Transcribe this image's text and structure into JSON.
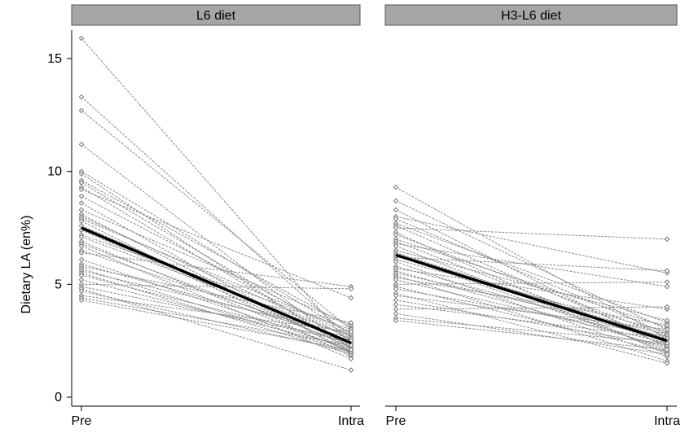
{
  "chart_data": {
    "type": "line",
    "ylabel": "Dietary LA (en%)",
    "ylim": [
      0,
      16
    ],
    "yticks": [
      0,
      5,
      10,
      15
    ],
    "xticks": [
      "Pre",
      "Intra"
    ],
    "grid": false,
    "panels": [
      {
        "title": "L6 diet",
        "mean": [
          7.5,
          2.4
        ],
        "individuals": [
          [
            15.9,
            2.3
          ],
          [
            13.3,
            2.6
          ],
          [
            12.7,
            3.0
          ],
          [
            11.2,
            2.1
          ],
          [
            10.0,
            2.8
          ],
          [
            9.9,
            2.0
          ],
          [
            9.6,
            3.1
          ],
          [
            9.5,
            2.5
          ],
          [
            9.3,
            2.2
          ],
          [
            9.2,
            4.4
          ],
          [
            8.9,
            2.7
          ],
          [
            8.6,
            1.9
          ],
          [
            8.3,
            3.2
          ],
          [
            8.1,
            2.0
          ],
          [
            8.0,
            2.6
          ],
          [
            7.9,
            2.9
          ],
          [
            7.8,
            1.8
          ],
          [
            7.6,
            2.4
          ],
          [
            7.4,
            2.2
          ],
          [
            7.2,
            3.0
          ],
          [
            7.1,
            2.7
          ],
          [
            6.9,
            2.0
          ],
          [
            6.8,
            2.3
          ],
          [
            6.7,
            1.7
          ],
          [
            6.5,
            2.5
          ],
          [
            6.4,
            4.9
          ],
          [
            6.1,
            2.1
          ],
          [
            5.9,
            2.6
          ],
          [
            5.8,
            3.3
          ],
          [
            5.7,
            2.0
          ],
          [
            5.6,
            2.8
          ],
          [
            5.5,
            1.9
          ],
          [
            5.4,
            2.4
          ],
          [
            5.2,
            2.2
          ],
          [
            5.0,
            4.8
          ],
          [
            4.9,
            2.5
          ],
          [
            4.8,
            1.2
          ],
          [
            4.7,
            2.0
          ],
          [
            4.5,
            2.9
          ],
          [
            4.4,
            2.3
          ],
          [
            4.3,
            2.1
          ]
        ]
      },
      {
        "title": "H3-L6 diet",
        "mean": [
          6.3,
          2.5
        ],
        "individuals": [
          [
            9.3,
            2.6
          ],
          [
            8.7,
            3.0
          ],
          [
            8.3,
            2.2
          ],
          [
            8.0,
            5.5
          ],
          [
            7.9,
            2.8
          ],
          [
            7.7,
            3.3
          ],
          [
            7.6,
            2.4
          ],
          [
            7.5,
            7.0
          ],
          [
            7.3,
            1.9
          ],
          [
            7.2,
            2.7
          ],
          [
            7.0,
            3.1
          ],
          [
            6.9,
            2.3
          ],
          [
            6.8,
            4.9
          ],
          [
            6.7,
            2.0
          ],
          [
            6.5,
            3.4
          ],
          [
            6.4,
            2.6
          ],
          [
            6.3,
            2.1
          ],
          [
            6.2,
            5.6
          ],
          [
            6.1,
            2.9
          ],
          [
            6.0,
            1.8
          ],
          [
            5.8,
            2.5
          ],
          [
            5.7,
            3.9
          ],
          [
            5.6,
            2.2
          ],
          [
            5.5,
            2.8
          ],
          [
            5.4,
            1.6
          ],
          [
            5.3,
            3.2
          ],
          [
            5.2,
            2.4
          ],
          [
            5.0,
            5.1
          ],
          [
            4.9,
            2.0
          ],
          [
            4.8,
            2.7
          ],
          [
            4.6,
            1.5
          ],
          [
            4.5,
            3.0
          ],
          [
            4.3,
            2.3
          ],
          [
            4.1,
            2.6
          ],
          [
            3.9,
            4.0
          ],
          [
            3.7,
            1.9
          ],
          [
            3.5,
            2.4
          ],
          [
            3.4,
            2.1
          ]
        ]
      }
    ]
  }
}
